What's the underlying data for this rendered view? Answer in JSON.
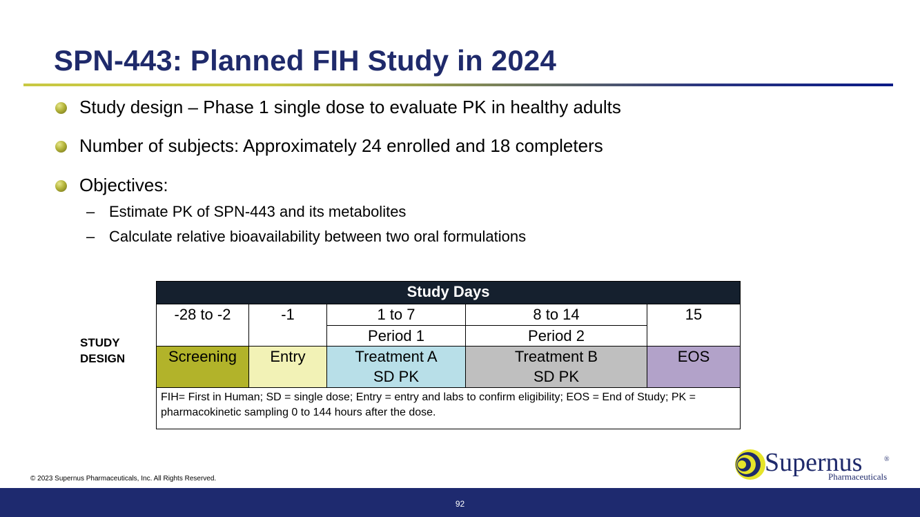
{
  "title": "SPN-443: Planned FIH Study in 2024",
  "bullets": [
    "Study design – Phase 1 single dose to evaluate PK in healthy adults",
    "Number of subjects: Approximately 24 enrolled and 18 completers",
    "Objectives:"
  ],
  "sub_bullets": [
    "Estimate PK of SPN-443 and its metabolites",
    "Calculate relative bioavailability between two oral formulations"
  ],
  "dash": "–",
  "study_design_label": [
    "STUDY",
    "DESIGN"
  ],
  "table": {
    "header": "Study Days",
    "days": [
      "-28 to -2",
      "-1",
      "1 to 7",
      "8 to 14",
      "15"
    ],
    "periods": [
      "Period 1",
      "Period 2"
    ],
    "phases": {
      "screening": "Screening",
      "entry": "Entry",
      "treatment_a": [
        "Treatment A",
        "SD PK"
      ],
      "treatment_b": [
        "Treatment B",
        "SD PK"
      ],
      "eos": "EOS"
    },
    "footnote": "FIH= First in Human; SD = single dose; Entry = entry and labs to confirm eligibility; EOS = End of Study; PK = pharmacokinetic sampling 0 to 144 hours after the dose."
  },
  "logo": {
    "name": "Supernus",
    "registered": "®",
    "tagline": "Pharmaceuticals"
  },
  "copyright": "© 2023 Supernus Pharmaceuticals, Inc. All Rights Reserved.",
  "page_number": "92",
  "colors": {
    "title": "#1f2a6b",
    "footer_bar": "#1e2a6f",
    "table_header": "#15202e",
    "screening": "#b2b32a",
    "entry": "#f2f2b6",
    "treatment_a": "#b8dfe8",
    "treatment_b": "#bfbfbf",
    "eos": "#b2a2c9"
  }
}
